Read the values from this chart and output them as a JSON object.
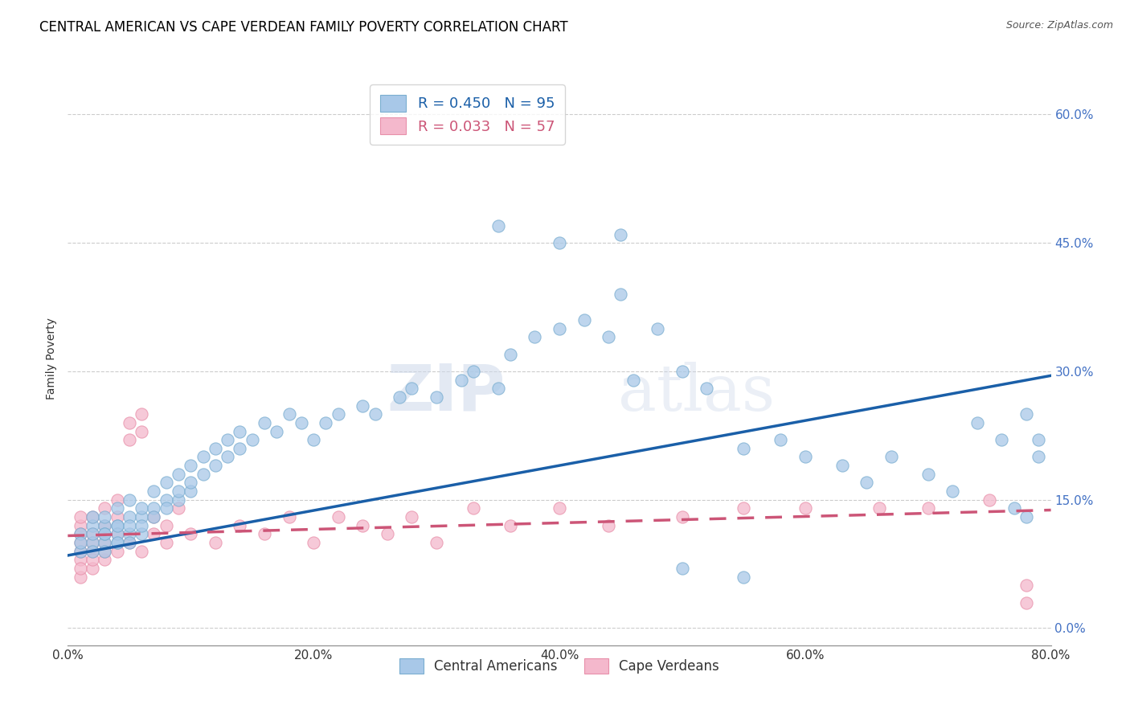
{
  "title": "CENTRAL AMERICAN VS CAPE VERDEAN FAMILY POVERTY CORRELATION CHART",
  "source": "Source: ZipAtlas.com",
  "xlabel_ticks": [
    "0.0%",
    "20.0%",
    "40.0%",
    "60.0%",
    "80.0%"
  ],
  "ylabel_ticks": [
    "0.0%",
    "15.0%",
    "30.0%",
    "45.0%",
    "60.0%"
  ],
  "xlim": [
    0.0,
    0.8
  ],
  "ylim": [
    -0.02,
    0.65
  ],
  "ylabel": "Family Poverty",
  "legend_line1": "R = 0.450   N = 95",
  "legend_line2": "R = 0.033   N = 57",
  "watermark_zip": "ZIP",
  "watermark_atlas": "atlas",
  "blue_color": "#a8c8e8",
  "blue_edge_color": "#7aaed0",
  "pink_color": "#f4b8cc",
  "pink_edge_color": "#e890aa",
  "blue_line_color": "#1a5fa8",
  "pink_line_color": "#cc5577",
  "title_fontsize": 12,
  "axis_label_fontsize": 10,
  "tick_fontsize": 11,
  "ca_x": [
    0.01,
    0.01,
    0.01,
    0.02,
    0.02,
    0.02,
    0.02,
    0.02,
    0.03,
    0.03,
    0.03,
    0.03,
    0.03,
    0.03,
    0.04,
    0.04,
    0.04,
    0.04,
    0.04,
    0.04,
    0.05,
    0.05,
    0.05,
    0.05,
    0.05,
    0.06,
    0.06,
    0.06,
    0.06,
    0.07,
    0.07,
    0.07,
    0.08,
    0.08,
    0.08,
    0.09,
    0.09,
    0.09,
    0.1,
    0.1,
    0.1,
    0.11,
    0.11,
    0.12,
    0.12,
    0.13,
    0.13,
    0.14,
    0.14,
    0.15,
    0.16,
    0.17,
    0.18,
    0.19,
    0.2,
    0.21,
    0.22,
    0.24,
    0.25,
    0.27,
    0.28,
    0.3,
    0.32,
    0.33,
    0.35,
    0.36,
    0.38,
    0.4,
    0.42,
    0.44,
    0.45,
    0.46,
    0.48,
    0.5,
    0.52,
    0.55,
    0.58,
    0.6,
    0.63,
    0.65,
    0.67,
    0.7,
    0.72,
    0.74,
    0.76,
    0.77,
    0.78,
    0.78,
    0.79,
    0.79,
    0.35,
    0.4,
    0.45,
    0.5,
    0.55
  ],
  "ca_y": [
    0.09,
    0.11,
    0.1,
    0.1,
    0.12,
    0.09,
    0.11,
    0.13,
    0.1,
    0.12,
    0.11,
    0.09,
    0.13,
    0.11,
    0.1,
    0.12,
    0.11,
    0.14,
    0.1,
    0.12,
    0.11,
    0.13,
    0.1,
    0.15,
    0.12,
    0.13,
    0.11,
    0.14,
    0.12,
    0.14,
    0.13,
    0.16,
    0.15,
    0.14,
    0.17,
    0.15,
    0.16,
    0.18,
    0.16,
    0.17,
    0.19,
    0.18,
    0.2,
    0.19,
    0.21,
    0.2,
    0.22,
    0.21,
    0.23,
    0.22,
    0.24,
    0.23,
    0.25,
    0.24,
    0.22,
    0.24,
    0.25,
    0.26,
    0.25,
    0.27,
    0.28,
    0.27,
    0.29,
    0.3,
    0.28,
    0.32,
    0.34,
    0.35,
    0.36,
    0.34,
    0.46,
    0.29,
    0.35,
    0.3,
    0.28,
    0.21,
    0.22,
    0.2,
    0.19,
    0.17,
    0.2,
    0.18,
    0.16,
    0.24,
    0.22,
    0.14,
    0.13,
    0.25,
    0.22,
    0.2,
    0.47,
    0.45,
    0.39,
    0.07,
    0.06
  ],
  "cv_x": [
    0.01,
    0.01,
    0.01,
    0.01,
    0.01,
    0.01,
    0.01,
    0.01,
    0.02,
    0.02,
    0.02,
    0.02,
    0.02,
    0.02,
    0.03,
    0.03,
    0.03,
    0.03,
    0.03,
    0.04,
    0.04,
    0.04,
    0.04,
    0.05,
    0.05,
    0.05,
    0.06,
    0.06,
    0.06,
    0.07,
    0.07,
    0.08,
    0.08,
    0.09,
    0.1,
    0.12,
    0.14,
    0.16,
    0.18,
    0.2,
    0.22,
    0.24,
    0.26,
    0.28,
    0.3,
    0.33,
    0.36,
    0.4,
    0.44,
    0.5,
    0.55,
    0.6,
    0.66,
    0.7,
    0.75,
    0.78,
    0.78
  ],
  "cv_y": [
    0.1,
    0.08,
    0.06,
    0.12,
    0.09,
    0.11,
    0.07,
    0.13,
    0.09,
    0.11,
    0.07,
    0.13,
    0.08,
    0.1,
    0.1,
    0.12,
    0.08,
    0.14,
    0.09,
    0.11,
    0.09,
    0.13,
    0.15,
    0.22,
    0.24,
    0.1,
    0.23,
    0.25,
    0.09,
    0.11,
    0.13,
    0.1,
    0.12,
    0.14,
    0.11,
    0.1,
    0.12,
    0.11,
    0.13,
    0.1,
    0.13,
    0.12,
    0.11,
    0.13,
    0.1,
    0.14,
    0.12,
    0.14,
    0.12,
    0.13,
    0.14,
    0.14,
    0.14,
    0.14,
    0.15,
    0.05,
    0.03
  ],
  "blue_trendline_x": [
    0.0,
    0.8
  ],
  "blue_trendline_y": [
    0.085,
    0.295
  ],
  "pink_trendline_x": [
    0.0,
    0.8
  ],
  "pink_trendline_y": [
    0.108,
    0.138
  ]
}
